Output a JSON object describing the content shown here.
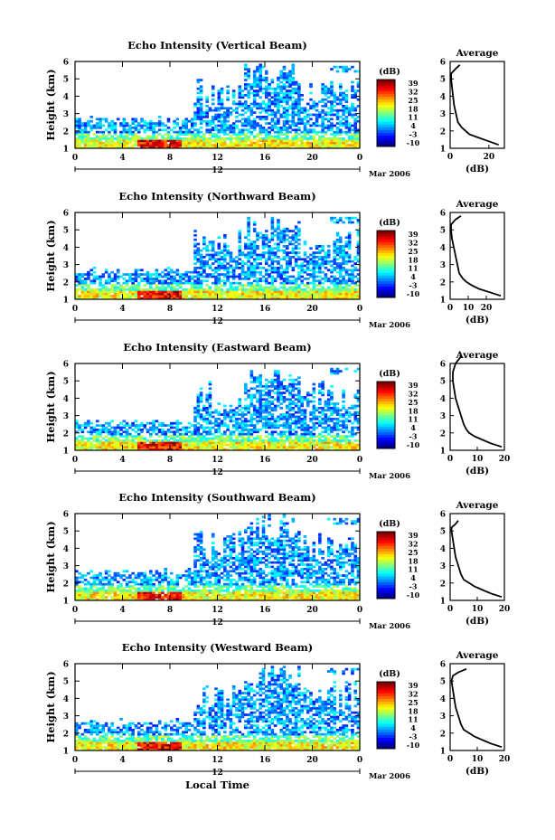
{
  "chart_data": [
    {
      "type": "heatmap",
      "title": "Echo Intensity (Vertical Beam)",
      "ylabel": "Height (km)",
      "xticks": [
        "0",
        "4",
        "8",
        "12",
        "16",
        "20",
        "0"
      ],
      "date_tick": "12",
      "date_suffix": "Mar 2006",
      "yticks": [
        "1",
        "2",
        "3",
        "4",
        "5",
        "6"
      ],
      "xlim": [
        0,
        24
      ],
      "ylim": [
        1,
        6
      ],
      "colorbar": {
        "unit": "(dB)",
        "ticks": [
          "39",
          "32",
          "25",
          "18",
          "11",
          "4",
          "-3",
          "-10"
        ]
      },
      "average_profile": {
        "title": "Average",
        "xlabel": "(dB)",
        "xticks": [
          "0",
          "20"
        ],
        "xlim": [
          0,
          28
        ],
        "yticks": [
          "1",
          "2",
          "3",
          "4",
          "5",
          "6"
        ],
        "x": [
          25,
          20,
          15,
          10,
          8,
          6,
          4,
          3,
          2,
          1.5,
          1,
          0.5,
          0.5,
          3,
          5
        ],
        "y": [
          1.2,
          1.4,
          1.6,
          1.8,
          2,
          2.2,
          2.5,
          3,
          3.5,
          4,
          4.5,
          5,
          5.3,
          5.6,
          5.8
        ]
      }
    },
    {
      "type": "heatmap",
      "title": "Echo Intensity (Northward Beam)",
      "ylabel": "Height (km)",
      "xticks": [
        "0",
        "4",
        "8",
        "12",
        "16",
        "20",
        "0"
      ],
      "date_tick": "12",
      "date_suffix": "Mar 2006",
      "yticks": [
        "1",
        "2",
        "3",
        "4",
        "5",
        "6"
      ],
      "xlim": [
        0,
        24
      ],
      "ylim": [
        1,
        6
      ],
      "colorbar": {
        "unit": "(dB)",
        "ticks": [
          "39",
          "32",
          "25",
          "18",
          "11",
          "4",
          "-3",
          "-10"
        ]
      },
      "average_profile": {
        "title": "Average",
        "xlabel": "(dB)",
        "xticks": [
          "0",
          "10",
          "20"
        ],
        "xlim": [
          0,
          30
        ],
        "yticks": [
          "1",
          "2",
          "3",
          "4",
          "5",
          "6"
        ],
        "x": [
          28,
          22,
          16,
          12,
          9,
          7,
          5,
          4,
          3,
          2,
          1,
          0.5,
          0.5,
          3,
          6
        ],
        "y": [
          1.2,
          1.4,
          1.6,
          1.8,
          2,
          2.2,
          2.5,
          3,
          3.5,
          4,
          4.5,
          5,
          5.3,
          5.6,
          5.8
        ]
      }
    },
    {
      "type": "heatmap",
      "title": "Echo Intensity (Eastward Beam)",
      "ylabel": "Height (km)",
      "xticks": [
        "0",
        "4",
        "8",
        "12",
        "16",
        "20",
        "0"
      ],
      "date_tick": "12",
      "date_suffix": "Mar 2006",
      "yticks": [
        "1",
        "2",
        "3",
        "4",
        "5",
        "6"
      ],
      "xlim": [
        0,
        24
      ],
      "ylim": [
        1,
        6
      ],
      "colorbar": {
        "unit": "(dB)",
        "ticks": [
          "39",
          "32",
          "25",
          "18",
          "11",
          "4",
          "-3",
          "-10"
        ]
      },
      "average_profile": {
        "title": "Average",
        "xlabel": "(dB)",
        "xticks": [
          "0",
          "10",
          "20"
        ],
        "xlim": [
          0,
          20
        ],
        "yticks": [
          "1",
          "2",
          "3",
          "4",
          "5",
          "6"
        ],
        "x": [
          19,
          15,
          12,
          9,
          7,
          6,
          5,
          4,
          3,
          2,
          1.5,
          1,
          1,
          2,
          4
        ],
        "y": [
          1.2,
          1.4,
          1.6,
          1.8,
          2,
          2.2,
          2.5,
          3,
          3.5,
          4,
          4.5,
          5,
          5.5,
          6,
          6.4
        ]
      }
    },
    {
      "type": "heatmap",
      "title": "Echo Intensity (Southward Beam)",
      "ylabel": "Height (km)",
      "xticks": [
        "0",
        "4",
        "8",
        "12",
        "16",
        "20",
        "0"
      ],
      "date_tick": "12",
      "date_suffix": "Mar 2006",
      "yticks": [
        "1",
        "2",
        "3",
        "4",
        "5",
        "6"
      ],
      "xlim": [
        0,
        24
      ],
      "ylim": [
        1,
        6
      ],
      "colorbar": {
        "unit": "(dB)",
        "ticks": [
          "39",
          "32",
          "25",
          "18",
          "11",
          "4",
          "-3",
          "-10"
        ]
      },
      "average_profile": {
        "title": "Average",
        "xlabel": "(dB)",
        "xticks": [
          "0",
          "10",
          "20"
        ],
        "xlim": [
          0,
          20
        ],
        "yticks": [
          "1",
          "2",
          "3",
          "4",
          "5",
          "6"
        ],
        "x": [
          19,
          15,
          12,
          9,
          7,
          5,
          4,
          3,
          2,
          1.5,
          1,
          0.5,
          0.5,
          2,
          3
        ],
        "y": [
          1.2,
          1.4,
          1.6,
          1.8,
          2,
          2.2,
          2.5,
          3,
          3.5,
          4,
          4.5,
          5,
          5.2,
          5.4,
          5.6
        ]
      }
    },
    {
      "type": "heatmap",
      "title": "Echo Intensity (Westward Beam)",
      "ylabel": "Height (km)",
      "xticks": [
        "0",
        "4",
        "8",
        "12",
        "16",
        "20",
        "0"
      ],
      "date_tick": "12",
      "date_suffix": "Mar 2006",
      "xlabel": "Local Time",
      "yticks": [
        "1",
        "2",
        "3",
        "4",
        "5",
        "6"
      ],
      "xlim": [
        0,
        24
      ],
      "ylim": [
        1,
        6
      ],
      "colorbar": {
        "unit": "(dB)",
        "ticks": [
          "39",
          "32",
          "25",
          "18",
          "11",
          "4",
          "-3",
          "-10"
        ]
      },
      "average_profile": {
        "title": "Average",
        "xlabel": "(dB)",
        "xticks": [
          "0",
          "10",
          "20"
        ],
        "xlim": [
          0,
          20
        ],
        "yticks": [
          "1",
          "2",
          "3",
          "4",
          "5",
          "6"
        ],
        "x": [
          19,
          15,
          12,
          9,
          7,
          5,
          4,
          3,
          2,
          1.5,
          1,
          0.5,
          1,
          3,
          6
        ],
        "y": [
          1.2,
          1.4,
          1.6,
          1.8,
          2,
          2.2,
          2.5,
          3,
          3.5,
          4,
          4.5,
          5,
          5.3,
          5.5,
          5.7
        ]
      }
    }
  ]
}
